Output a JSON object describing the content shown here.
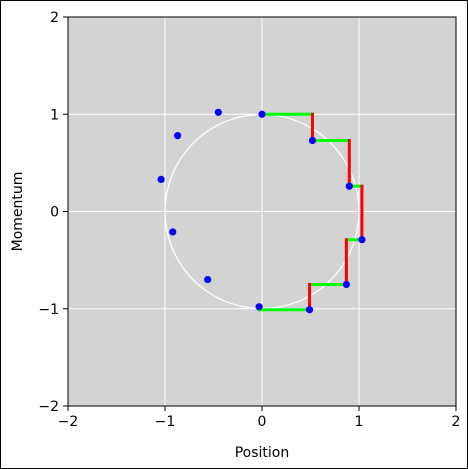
{
  "chart_data": {
    "type": "scatter",
    "xlabel": "Position",
    "ylabel": "Momentum",
    "xlim": [
      -2,
      2
    ],
    "ylim": [
      -2,
      2
    ],
    "xticks": [
      -2,
      -1,
      0,
      1,
      2
    ],
    "yticks": [
      -2,
      -1,
      0,
      1,
      2
    ],
    "xtick_labels": [
      "−2",
      "−1",
      "0",
      "1",
      "2"
    ],
    "ytick_labels": [
      "−2",
      "−1",
      "0",
      "1",
      "2"
    ],
    "grid": true,
    "reference_circle": {
      "center": [
        0,
        0
      ],
      "radius": 1
    },
    "points": [
      {
        "x": 0.0,
        "y": 1.0
      },
      {
        "x": 0.52,
        "y": 0.73
      },
      {
        "x": 0.9,
        "y": 0.26
      },
      {
        "x": 1.03,
        "y": -0.29
      },
      {
        "x": 0.87,
        "y": -0.75
      },
      {
        "x": 0.49,
        "y": -1.01
      },
      {
        "x": -0.03,
        "y": -0.98
      },
      {
        "x": -0.56,
        "y": -0.7
      },
      {
        "x": -0.92,
        "y": -0.21
      },
      {
        "x": -1.04,
        "y": 0.33
      },
      {
        "x": -0.87,
        "y": 0.78
      },
      {
        "x": -0.45,
        "y": 1.02
      }
    ],
    "step_path": [
      [
        0.0,
        1.0
      ],
      [
        0.52,
        1.0
      ],
      [
        0.52,
        0.73
      ],
      [
        0.9,
        0.73
      ],
      [
        0.9,
        0.26
      ],
      [
        1.03,
        0.26
      ],
      [
        1.03,
        -0.29
      ],
      [
        0.87,
        -0.29
      ],
      [
        0.87,
        -0.75
      ],
      [
        0.49,
        -0.75
      ],
      [
        0.49,
        -1.01
      ],
      [
        -0.03,
        -1.01
      ]
    ],
    "colors": {
      "plot_background": "#d3d3d3",
      "grid": "#ffffff",
      "circle": "#ffffff",
      "points": "#0000ff",
      "horizontal_steps": "#00ff00",
      "vertical_steps": "#ff0000"
    }
  }
}
